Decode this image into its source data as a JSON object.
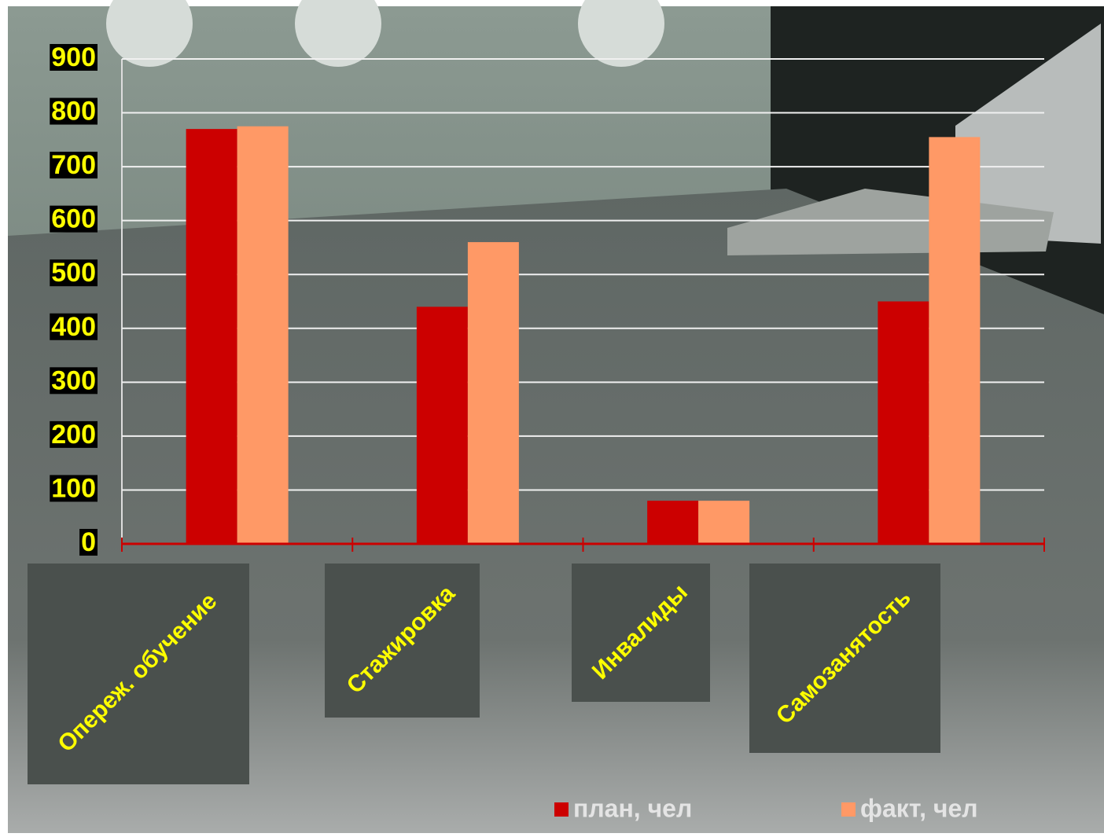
{
  "chart_data": {
    "type": "bar",
    "categories": [
      "Опереж. обучение",
      "Стажировка",
      "Инвалиды",
      "Самозанятость"
    ],
    "series": [
      {
        "name": "план, чел",
        "color": "#cc0000",
        "values": [
          770,
          440,
          80,
          450
        ]
      },
      {
        "name": "факт, чел",
        "color": "#ff9966",
        "values": [
          775,
          560,
          80,
          755
        ]
      }
    ],
    "ylim": [
      0,
      900
    ],
    "yticks": [
      0,
      100,
      200,
      300,
      400,
      500,
      600,
      700,
      800,
      900
    ],
    "grid": true
  }
}
